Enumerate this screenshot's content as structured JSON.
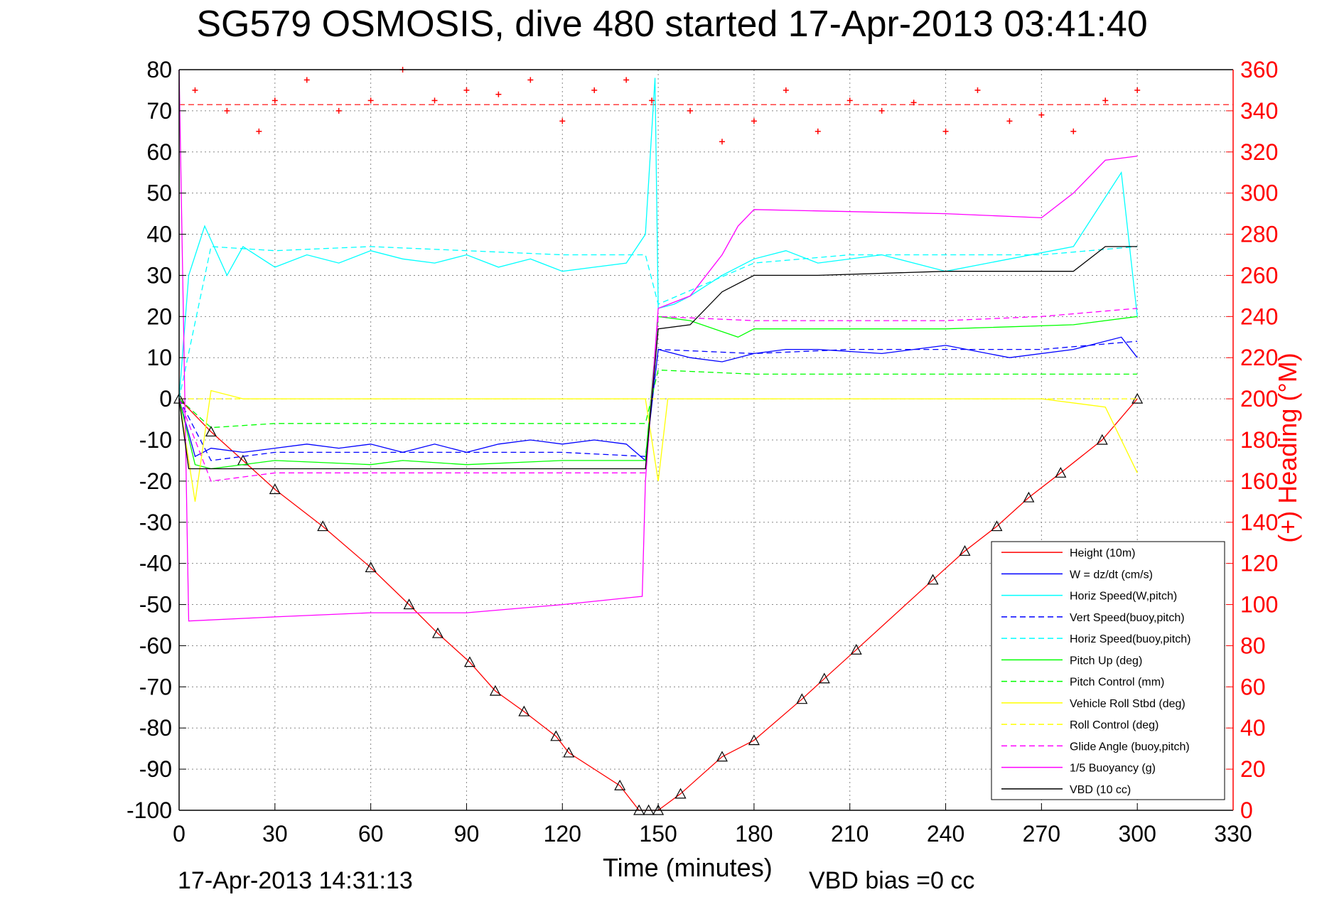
{
  "title": "SG579 OSMOSIS, dive 480 started 17-Apr-2013 03:41:40",
  "footer": {
    "timestamp": "17-Apr-2013 14:31:13",
    "xlabel": "Time (minutes)",
    "vbd_bias": "VBD bias =0 cc"
  },
  "colors": {
    "height": "#ff0000",
    "w": "#0000ff",
    "horiz": "#00ffff",
    "pitch": "#00ff00",
    "roll": "#ffff00",
    "glide": "#ff00ff",
    "vbd": "#000000",
    "heading": "#ff0000"
  },
  "chart_data": {
    "type": "line",
    "title": "SG579 OSMOSIS, dive 480 started 17-Apr-2013 03:41:40",
    "xlabel": "Time (minutes)",
    "ylabel": "",
    "y2label": "(+) Heading (°M)",
    "xlim": [
      0,
      330
    ],
    "ylim": [
      -100,
      80
    ],
    "y2lim": [
      0,
      360
    ],
    "x_ticks": [
      "0",
      "30",
      "60",
      "90",
      "120",
      "150",
      "180",
      "210",
      "240",
      "270",
      "300",
      "330"
    ],
    "y_ticks": [
      "-100",
      "-90",
      "-80",
      "-70",
      "-60",
      "-50",
      "-40",
      "-30",
      "-20",
      "-10",
      "0",
      "10",
      "20",
      "30",
      "40",
      "50",
      "60",
      "70",
      "80"
    ],
    "y2_ticks": [
      "0",
      "20",
      "40",
      "60",
      "80",
      "100",
      "120",
      "140",
      "160",
      "180",
      "200",
      "220",
      "240",
      "260",
      "280",
      "300",
      "320",
      "340",
      "360"
    ],
    "grid": true,
    "legend_position": "bottom-right",
    "series": [
      {
        "name": "Height (10m)",
        "color": "#ff0000",
        "style": "solid",
        "marker": "triangle",
        "x": [
          0,
          10,
          20,
          30,
          45,
          60,
          72,
          81,
          91,
          99,
          108,
          118,
          122,
          138,
          144,
          147,
          150,
          157,
          170,
          180,
          195,
          202,
          212,
          236,
          246,
          256,
          266,
          276,
          289,
          300
        ],
        "y": [
          0,
          -8,
          -15,
          -22,
          -31,
          -41,
          -50,
          -57,
          -64,
          -71,
          -76,
          -82,
          -86,
          -94,
          -100,
          -100,
          -100,
          -96,
          -87,
          -83,
          -73,
          -68,
          -61,
          -44,
          -37,
          -31,
          -24,
          -18,
          -10,
          0
        ]
      },
      {
        "name": "W = dz/dt (cm/s)",
        "color": "#0000ff",
        "style": "solid",
        "x": [
          0,
          5,
          10,
          20,
          30,
          40,
          50,
          60,
          70,
          80,
          90,
          100,
          110,
          120,
          130,
          140,
          146,
          150,
          160,
          170,
          180,
          190,
          200,
          220,
          240,
          260,
          280,
          295,
          300
        ],
        "y": [
          0,
          -14,
          -12,
          -13,
          -12,
          -11,
          -12,
          -11,
          -13,
          -11,
          -13,
          -11,
          -10,
          -11,
          -10,
          -11,
          -15,
          12,
          10,
          9,
          11,
          12,
          12,
          11,
          13,
          10,
          12,
          15,
          10
        ]
      },
      {
        "name": "Horiz Speed(W,pitch)",
        "color": "#00ffff",
        "style": "solid",
        "x": [
          0,
          3,
          8,
          15,
          20,
          30,
          40,
          50,
          60,
          70,
          80,
          90,
          100,
          110,
          120,
          130,
          140,
          146,
          149,
          150,
          155,
          160,
          170,
          180,
          190,
          200,
          220,
          240,
          260,
          280,
          295,
          300
        ],
        "y": [
          0,
          30,
          42,
          30,
          37,
          32,
          35,
          33,
          36,
          34,
          33,
          35,
          32,
          34,
          31,
          32,
          33,
          40,
          78,
          22,
          23,
          25,
          30,
          34,
          36,
          33,
          35,
          31,
          34,
          37,
          55,
          20
        ]
      },
      {
        "name": "Vert Speed(buoy,pitch)",
        "color": "#0000ff",
        "style": "dashed",
        "x": [
          0,
          10,
          30,
          60,
          90,
          120,
          146,
          150,
          180,
          210,
          240,
          270,
          300
        ],
        "y": [
          0,
          -15,
          -13,
          -13,
          -13,
          -13,
          -14,
          12,
          11,
          12,
          12,
          12,
          14
        ]
      },
      {
        "name": "Horiz Speed(buoy,pitch)",
        "color": "#00ffff",
        "style": "dashed",
        "x": [
          0,
          10,
          30,
          60,
          90,
          120,
          146,
          150,
          180,
          210,
          240,
          270,
          300
        ],
        "y": [
          0,
          37,
          36,
          37,
          36,
          35,
          35,
          23,
          33,
          35,
          35,
          35,
          37
        ]
      },
      {
        "name": "Pitch Up (deg)",
        "color": "#00ff00",
        "style": "solid",
        "x": [
          0,
          5,
          10,
          30,
          60,
          70,
          90,
          120,
          146,
          150,
          160,
          175,
          180,
          200,
          240,
          280,
          300
        ],
        "y": [
          0,
          -16,
          -17,
          -15,
          -16,
          -15,
          -16,
          -15,
          -15,
          20,
          19,
          15,
          17,
          17,
          17,
          18,
          20
        ]
      },
      {
        "name": "Pitch Control (mm)",
        "color": "#00ff00",
        "style": "dashed",
        "x": [
          0,
          10,
          30,
          60,
          90,
          120,
          146,
          150,
          180,
          210,
          240,
          270,
          300
        ],
        "y": [
          0,
          -7,
          -6,
          -6,
          -6,
          -6,
          -6,
          7,
          6,
          6,
          6,
          6,
          6
        ]
      },
      {
        "name": "Vehicle Roll Stbd (deg)",
        "color": "#ffff00",
        "style": "solid",
        "x": [
          0,
          5,
          10,
          20,
          30,
          60,
          90,
          120,
          146,
          150,
          153,
          160,
          180,
          210,
          240,
          270,
          290,
          300
        ],
        "y": [
          0,
          -25,
          2,
          0,
          0,
          0,
          0,
          0,
          0,
          -20,
          0,
          0,
          0,
          0,
          0,
          0,
          -2,
          -18
        ]
      },
      {
        "name": "Roll Control (deg)",
        "color": "#ffff00",
        "style": "dashed",
        "x": [
          0,
          10,
          30,
          60,
          90,
          120,
          146,
          150,
          180,
          210,
          240,
          270,
          300
        ],
        "y": [
          0,
          0,
          0,
          0,
          0,
          0,
          0,
          0,
          0,
          0,
          0,
          0,
          0
        ]
      },
      {
        "name": "Glide Angle (buoy,pitch)",
        "color": "#ff00ff",
        "style": "dashed",
        "x": [
          0,
          10,
          30,
          60,
          90,
          120,
          146,
          150,
          180,
          210,
          240,
          270,
          300
        ],
        "y": [
          0,
          -20,
          -18,
          -18,
          -18,
          -18,
          -18,
          20,
          19,
          19,
          19,
          20,
          22
        ]
      },
      {
        "name": "1/5 Buoyancy (g)",
        "color": "#ff00ff",
        "style": "solid",
        "x": [
          0,
          3,
          30,
          60,
          90,
          120,
          145,
          146,
          150,
          160,
          170,
          175,
          180,
          240,
          270,
          280,
          290,
          300
        ],
        "y": [
          80,
          -54,
          -53,
          -52,
          -52,
          -50,
          -48,
          -20,
          22,
          25,
          35,
          42,
          46,
          45,
          44,
          50,
          58,
          59
        ]
      },
      {
        "name": "VBD (10 cc)",
        "color": "#000000",
        "style": "solid",
        "x": [
          0,
          3,
          30,
          60,
          90,
          120,
          146,
          150,
          160,
          170,
          180,
          200,
          240,
          280,
          290,
          300
        ],
        "y": [
          0,
          -17,
          -17,
          -17,
          -17,
          -17,
          -17,
          17,
          18,
          26,
          30,
          30,
          31,
          31,
          37,
          37
        ]
      },
      {
        "name": "Heading",
        "color": "#ff0000",
        "style": "markers",
        "axis": "right",
        "x": [
          5,
          15,
          25,
          30,
          40,
          50,
          60,
          70,
          80,
          90,
          100,
          110,
          120,
          130,
          140,
          148,
          160,
          170,
          180,
          190,
          200,
          210,
          220,
          230,
          240,
          250,
          260,
          270,
          280,
          290,
          300
        ],
        "y": [
          350,
          340,
          330,
          345,
          355,
          340,
          345,
          360,
          345,
          350,
          348,
          355,
          335,
          350,
          355,
          345,
          340,
          325,
          335,
          350,
          330,
          345,
          340,
          344,
          330,
          350,
          335,
          338,
          330,
          345,
          350
        ]
      }
    ],
    "heading_mean_line": 343
  },
  "legend_entries": [
    "Height (10m)",
    "W = dz/dt (cm/s)",
    "Horiz Speed(W,pitch)",
    "Vert Speed(buoy,pitch)",
    "Horiz Speed(buoy,pitch)",
    "Pitch Up (deg)",
    "Pitch Control (mm)",
    "Vehicle Roll Stbd (deg)",
    "Roll Control (deg)",
    "Glide Angle (buoy,pitch)",
    "1/5 Buoyancy (g)",
    "VBD (10 cc)"
  ]
}
